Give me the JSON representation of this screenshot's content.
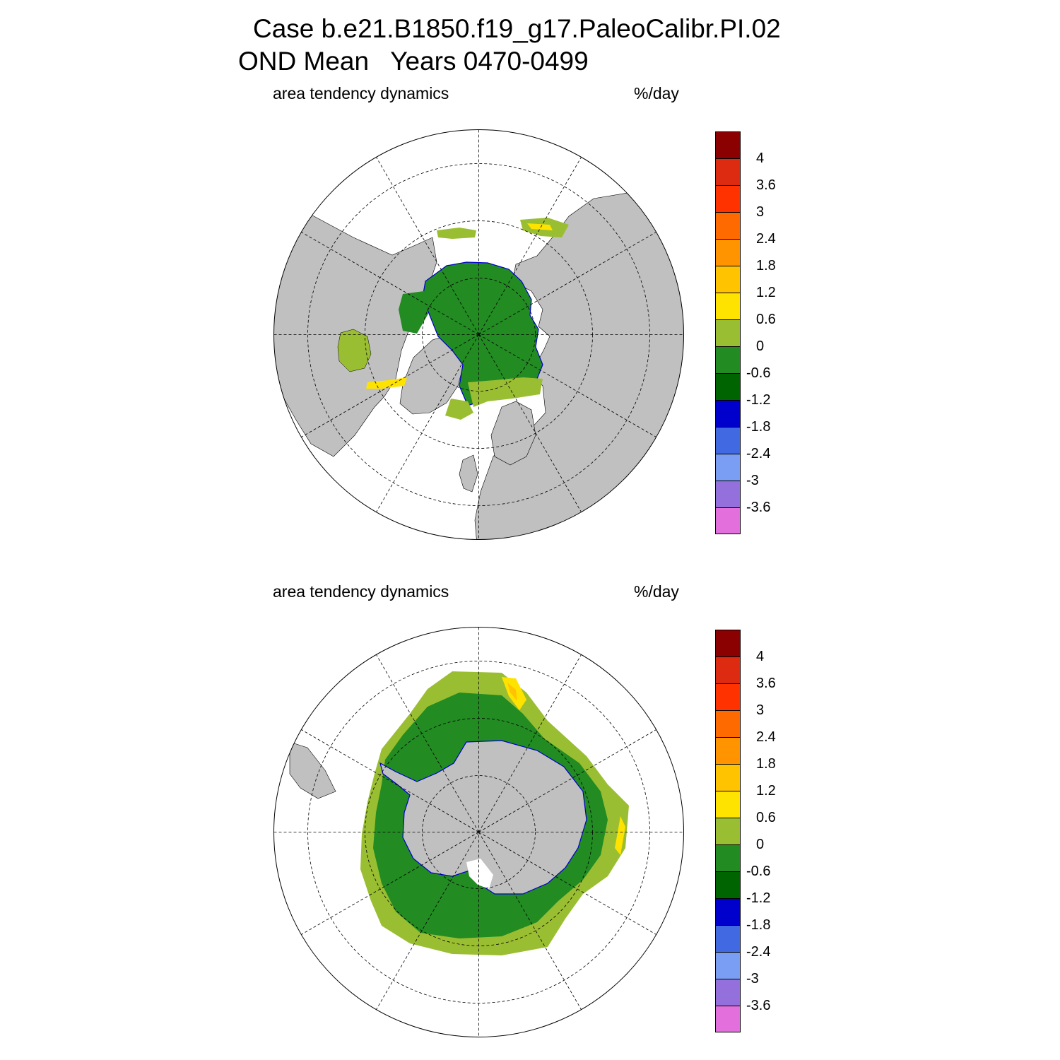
{
  "titles": {
    "line1": "Case b.e21.B1850.f19_g17.PaleoCalibr.PI.02",
    "line2": "OND Mean   Years 0470-0499"
  },
  "panels": [
    {
      "left_label": "area tendency dynamics",
      "right_label": "%/day"
    },
    {
      "left_label": "area tendency dynamics",
      "right_label": "%/day"
    }
  ],
  "colorbar": {
    "colors": [
      "#e26fdb",
      "#9370db",
      "#7b9ef5",
      "#4169e1",
      "#0000cd",
      "#006400",
      "#228b22",
      "#9abe32",
      "#ffe300",
      "#ffc300",
      "#ff9400",
      "#ff6a00",
      "#ff3200",
      "#dd2b12",
      "#8b0000"
    ],
    "labels": [
      "-3.6",
      "-3",
      "-2.4",
      "-1.8",
      "-1.2",
      "-0.6",
      "0",
      "0.6",
      "1.2",
      "1.8",
      "2.4",
      "3",
      "3.6",
      "4"
    ]
  },
  "map_colors": {
    "land": "#c0c0c0",
    "ocean": "#ffffff",
    "grid": "#000000"
  }
}
